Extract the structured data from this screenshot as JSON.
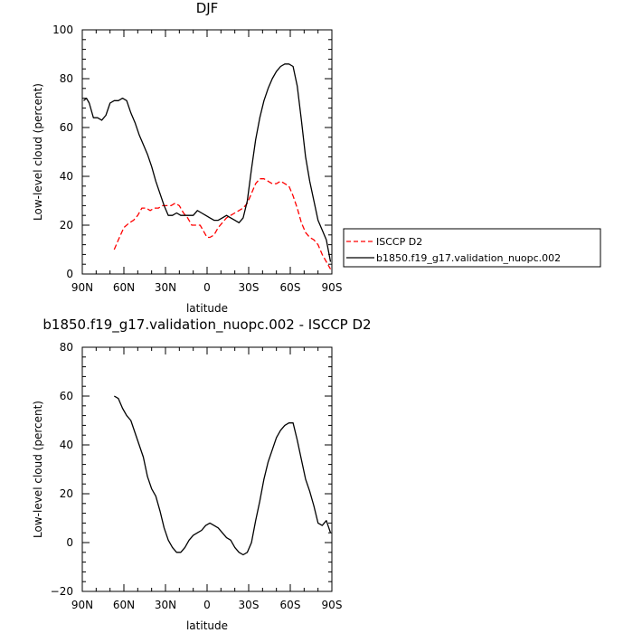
{
  "chart_data": [
    {
      "type": "line",
      "title": "DJF",
      "xlabel": "latitude",
      "ylabel": "Low-level cloud (percent)",
      "xlim": [
        90,
        -90
      ],
      "ylim": [
        0,
        100
      ],
      "xticks": [
        90,
        60,
        30,
        0,
        -30,
        -60,
        -90
      ],
      "xtick_labels": [
        "90N",
        "60N",
        "30N",
        "0",
        "30S",
        "60S",
        "90S"
      ],
      "yticks": [
        0,
        20,
        40,
        60,
        80,
        100
      ],
      "ytick_labels": [
        "0",
        "20",
        "40",
        "60",
        "80",
        "100"
      ],
      "grid": false,
      "legend_position": "right",
      "series": [
        {
          "name": "ISCCP D2",
          "color": "#ff0000",
          "style": "dashed",
          "x": [
            67,
            64,
            60,
            56,
            53,
            50,
            47,
            44,
            41,
            38,
            35,
            32,
            29,
            26,
            23,
            20,
            17,
            14,
            11,
            8,
            5,
            2,
            0,
            -2,
            -5,
            -8,
            -11,
            -14,
            -17,
            -20,
            -23,
            -26,
            -29,
            -32,
            -35,
            -38,
            -41,
            -44,
            -47,
            -50,
            -53,
            -56,
            -59,
            -62,
            -65,
            -68,
            -71,
            -74,
            -77,
            -80,
            -83,
            -86,
            -89
          ],
          "y": [
            10,
            14,
            19,
            21,
            22,
            24,
            27,
            27,
            26,
            27,
            27,
            28,
            28,
            28,
            29,
            28,
            25,
            23,
            20,
            20,
            20,
            17,
            15,
            15,
            16,
            19,
            21,
            23,
            24,
            25,
            26,
            27,
            29,
            33,
            37,
            39,
            39,
            38,
            37,
            37,
            38,
            37,
            36,
            32,
            27,
            21,
            17,
            15,
            14,
            12,
            8,
            5,
            2
          ]
        },
        {
          "name": "b1850.f19_g17.validation_nuopc.002",
          "color": "#000000",
          "style": "solid",
          "x": [
            89,
            87,
            85,
            82,
            79,
            76,
            73,
            70,
            67,
            64,
            61,
            58,
            55,
            52,
            49,
            46,
            43,
            40,
            37,
            34,
            31,
            28,
            25,
            22,
            19,
            16,
            13,
            10,
            7,
            4,
            1,
            -2,
            -5,
            -8,
            -11,
            -14,
            -17,
            -20,
            -23,
            -26,
            -29,
            -32,
            -35,
            -38,
            -41,
            -44,
            -47,
            -50,
            -53,
            -56,
            -59,
            -62,
            -65,
            -68,
            -71,
            -74,
            -77,
            -80,
            -83,
            -86,
            -89
          ],
          "y": [
            71,
            72,
            70,
            64,
            64,
            63,
            65,
            70,
            71,
            71,
            72,
            71,
            66,
            62,
            57,
            53,
            49,
            44,
            38,
            33,
            28,
            24,
            24,
            25,
            24,
            24,
            24,
            24,
            26,
            25,
            24,
            23,
            22,
            22,
            23,
            24,
            23,
            22,
            21,
            23,
            30,
            43,
            55,
            64,
            71,
            76,
            80,
            83,
            85,
            86,
            86,
            85,
            77,
            63,
            48,
            38,
            30,
            22,
            18,
            14,
            5
          ]
        }
      ]
    },
    {
      "type": "line",
      "title": "b1850.f19_g17.validation_nuopc.002 - ISCCP D2",
      "xlabel": "latitude",
      "ylabel": "Low-level cloud (percent)",
      "xlim": [
        90,
        -90
      ],
      "ylim": [
        -20,
        80
      ],
      "xticks": [
        90,
        60,
        30,
        0,
        -30,
        -60,
        -90
      ],
      "xtick_labels": [
        "90N",
        "60N",
        "30N",
        "0",
        "30S",
        "60S",
        "90S"
      ],
      "yticks": [
        -20,
        0,
        20,
        40,
        60,
        80
      ],
      "ytick_labels": [
        "−20",
        "0",
        "20",
        "40",
        "60",
        "80"
      ],
      "grid": false,
      "series": [
        {
          "color": "#000000",
          "style": "solid",
          "x": [
            67,
            64,
            61,
            58,
            55,
            52,
            49,
            46,
            43,
            40,
            37,
            34,
            31,
            28,
            25,
            22,
            19,
            16,
            13,
            10,
            7,
            4,
            1,
            -2,
            -5,
            -8,
            -11,
            -14,
            -17,
            -20,
            -23,
            -26,
            -29,
            -32,
            -35,
            -38,
            -41,
            -44,
            -47,
            -50,
            -53,
            -56,
            -59,
            -62,
            -65,
            -68,
            -71,
            -74,
            -77,
            -80,
            -83,
            -86,
            -89
          ],
          "y": [
            60,
            59,
            55,
            52,
            50,
            45,
            40,
            35,
            27,
            22,
            19,
            13,
            6,
            1,
            -2,
            -4,
            -4,
            -2,
            1,
            3,
            4,
            5,
            7,
            8,
            7,
            6,
            4,
            2,
            1,
            -2,
            -4,
            -5,
            -4,
            0,
            9,
            17,
            26,
            33,
            38,
            43,
            46,
            48,
            49,
            49,
            42,
            34,
            26,
            21,
            15,
            8,
            7,
            9,
            4
          ]
        }
      ]
    }
  ]
}
